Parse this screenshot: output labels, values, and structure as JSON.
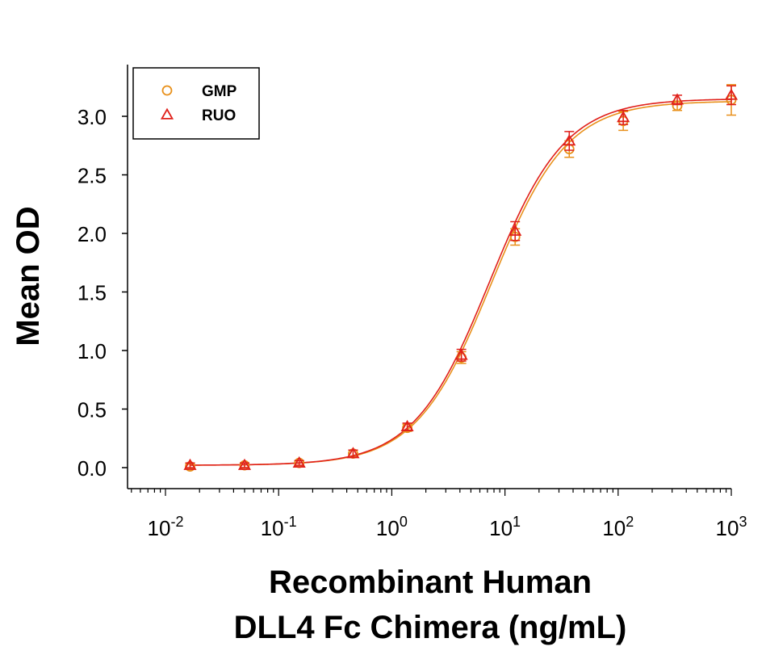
{
  "chart_data": {
    "type": "scatter",
    "xscale": "log",
    "xlabel_lines": [
      "Recombinant Human",
      "DLL4 Fc Chimera (ng/mL)"
    ],
    "ylabel": "Mean OD",
    "xlim": [
      0.01,
      1000
    ],
    "ylim": [
      -0.17,
      3.4
    ],
    "grid": false,
    "legend_position": "top-left",
    "yticks": [
      0.0,
      0.5,
      1.0,
      1.5,
      2.0,
      2.5,
      3.0
    ],
    "ytick_labels": [
      "0.0",
      "0.5",
      "1.0",
      "1.5",
      "2.0",
      "2.5",
      "3.0"
    ],
    "xtick_labels": [
      {
        "base": "10",
        "exp": "-2",
        "value": 0.01
      },
      {
        "base": "10",
        "exp": "-1",
        "value": 0.1
      },
      {
        "base": "10",
        "exp": "0",
        "value": 1
      },
      {
        "base": "10",
        "exp": "1",
        "value": 10
      },
      {
        "base": "10",
        "exp": "2",
        "value": 100
      },
      {
        "base": "10",
        "exp": "3",
        "value": 1000
      }
    ],
    "series": [
      {
        "name": "GMP",
        "marker": "circle",
        "color": "#E8901A",
        "x": [
          0.0165,
          0.05,
          0.152,
          0.455,
          1.37,
          4.12,
          12.3,
          37.0,
          111,
          333,
          1000
        ],
        "y": [
          0.01,
          0.02,
          0.04,
          0.12,
          0.34,
          0.94,
          1.97,
          2.72,
          2.96,
          3.09,
          3.14
        ],
        "err": [
          0.02,
          0.02,
          0.02,
          0.03,
          0.03,
          0.05,
          0.07,
          0.07,
          0.08,
          0.04,
          0.13
        ],
        "fit": {
          "bottom": 0.02,
          "top": 3.13,
          "ec50": 7.6,
          "hill": 1.3
        }
      },
      {
        "name": "RUO",
        "marker": "triangle",
        "color": "#E0201A",
        "x": [
          0.0165,
          0.05,
          0.152,
          0.455,
          1.37,
          4.12,
          12.3,
          37.0,
          111,
          333,
          1000
        ],
        "y": [
          0.02,
          0.02,
          0.04,
          0.12,
          0.35,
          0.96,
          2.02,
          2.79,
          2.99,
          3.14,
          3.18
        ],
        "err": [
          0.02,
          0.02,
          0.02,
          0.03,
          0.03,
          0.05,
          0.08,
          0.08,
          0.06,
          0.04,
          0.08
        ],
        "fit": {
          "bottom": 0.02,
          "top": 3.15,
          "ec50": 7.3,
          "hill": 1.3
        }
      }
    ]
  }
}
